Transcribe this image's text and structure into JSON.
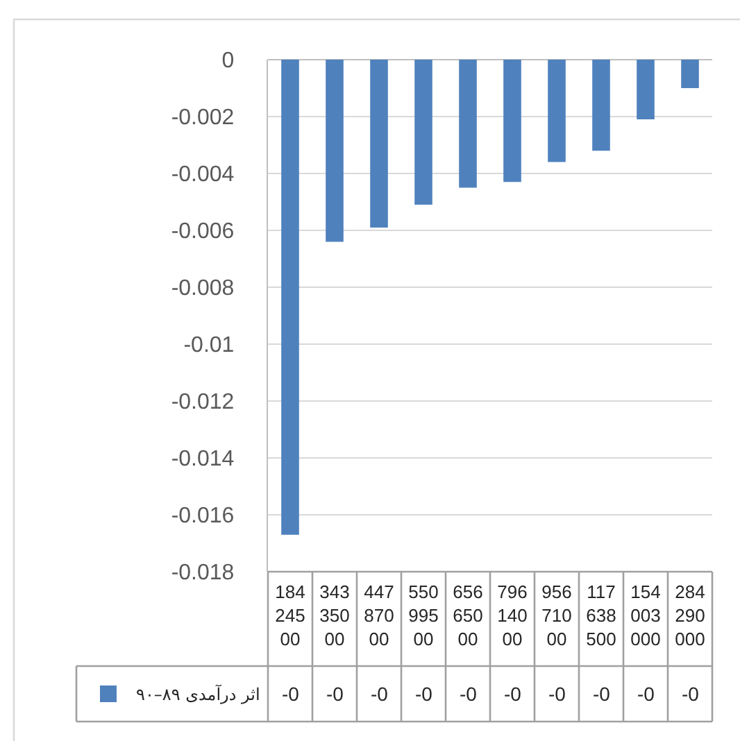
{
  "chart_data": {
    "type": "bar",
    "categories": [
      "18424500",
      "34335000",
      "44787000",
      "55099500",
      "65665000",
      "79614000",
      "95671000",
      "117638500",
      "154003000",
      "284290000"
    ],
    "series": [
      {
        "name": "اثر درآمدی ۸۹–۹۰",
        "color": "#4f81bd",
        "values": [
          -0.0167,
          -0.0064,
          -0.0059,
          -0.0051,
          -0.0045,
          -0.0043,
          -0.0036,
          -0.0032,
          -0.0021,
          -0.001
        ],
        "value_labels": [
          "-0",
          "-0",
          "-0",
          "-0",
          "-0",
          "-0",
          "-0",
          "-0",
          "-0",
          "-0"
        ]
      }
    ],
    "ylim": [
      -0.018,
      0
    ],
    "yticks": [
      0,
      -0.002,
      -0.004,
      -0.006,
      -0.008,
      -0.01,
      -0.012,
      -0.014,
      -0.016,
      -0.018
    ],
    "grid": "y",
    "legend": "bottom left"
  }
}
